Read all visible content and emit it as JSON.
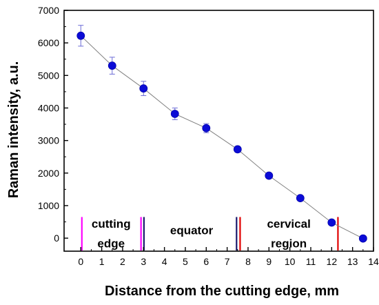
{
  "chart_data": {
    "type": "scatter",
    "xlabel": "Distance from the cutting edge, mm",
    "ylabel": "Raman intensity, a.u.",
    "xlim": [
      -0.8,
      14
    ],
    "ylim": [
      -400,
      7000
    ],
    "xticks": [
      0,
      1,
      2,
      3,
      4,
      5,
      6,
      7,
      8,
      9,
      10,
      11,
      12,
      13,
      14
    ],
    "yticks": [
      0,
      1000,
      2000,
      3000,
      4000,
      5000,
      6000,
      7000
    ],
    "grid": false,
    "colors": {
      "points": "#0b0bd6",
      "line": "#808080",
      "errorbars": "#6b6bd6",
      "magenta": "#ff00ff",
      "navy": "#1a1a6e",
      "red": "#e00000"
    },
    "series": [
      {
        "x": [
          0,
          1.5,
          3,
          4.5,
          6,
          7.5,
          9,
          10.5,
          12,
          13.5
        ],
        "y": [
          6220,
          5300,
          4600,
          3820,
          3380,
          2730,
          1920,
          1230,
          480,
          -10
        ],
        "err": [
          320,
          260,
          220,
          180,
          140,
          90,
          80,
          70,
          60,
          40
        ]
      }
    ],
    "vertical_markers": [
      {
        "x": 0.05,
        "color": "magenta"
      },
      {
        "x": 2.88,
        "color": "magenta"
      },
      {
        "x": 3.02,
        "color": "navy"
      },
      {
        "x": 7.45,
        "color": "navy"
      },
      {
        "x": 7.62,
        "color": "red"
      },
      {
        "x": 12.3,
        "color": "red"
      }
    ],
    "regions": [
      {
        "lines": [
          "cutting",
          "edge"
        ],
        "x": 1.45
      },
      {
        "lines": [
          "equator"
        ],
        "x": 5.3
      },
      {
        "lines": [
          "cervical",
          "region"
        ],
        "x": 9.95
      }
    ]
  }
}
